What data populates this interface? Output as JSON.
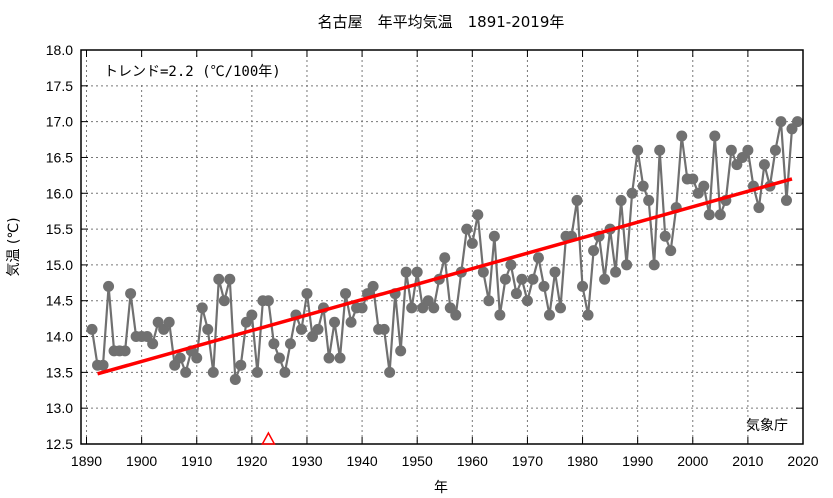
{
  "chart_data": {
    "type": "line",
    "title": "名古屋　年平均気温　1891-2019年",
    "xlabel": "年",
    "ylabel": "気温 (℃)",
    "xlim": [
      1889,
      2020
    ],
    "ylim": [
      12.5,
      18.0
    ],
    "grid": true,
    "x_ticks": [
      "1890",
      "1900",
      "1910",
      "1920",
      "1930",
      "1940",
      "1950",
      "1960",
      "1970",
      "1980",
      "1990",
      "2000",
      "2010",
      "2020"
    ],
    "y_ticks": [
      "12.5",
      "13.0",
      "13.5",
      "14.0",
      "14.5",
      "15.0",
      "15.5",
      "16.0",
      "16.5",
      "17.0",
      "17.5",
      "18.0"
    ],
    "annotation_trend": "トレンド=2.2 (℃/100年)",
    "source_label": "気象庁",
    "marker_color": "#707070",
    "trend_color": "#ff0000",
    "relocation_marker_year": 1923,
    "series": [
      {
        "name": "年平均気温",
        "x": [
          1891,
          1892,
          1893,
          1894,
          1895,
          1896,
          1897,
          1898,
          1899,
          1900,
          1901,
          1902,
          1903,
          1904,
          1905,
          1906,
          1907,
          1908,
          1909,
          1910,
          1911,
          1912,
          1913,
          1914,
          1915,
          1916,
          1917,
          1918,
          1919,
          1920,
          1921,
          1922,
          1923,
          1924,
          1925,
          1926,
          1927,
          1928,
          1929,
          1930,
          1931,
          1932,
          1933,
          1934,
          1935,
          1936,
          1937,
          1938,
          1939,
          1940,
          1941,
          1942,
          1943,
          1944,
          1945,
          1946,
          1947,
          1948,
          1949,
          1950,
          1951,
          1952,
          1953,
          1954,
          1955,
          1956,
          1957,
          1958,
          1959,
          1960,
          1961,
          1962,
          1963,
          1964,
          1965,
          1966,
          1967,
          1968,
          1969,
          1970,
          1971,
          1972,
          1973,
          1974,
          1975,
          1976,
          1977,
          1978,
          1979,
          1980,
          1981,
          1982,
          1983,
          1984,
          1985,
          1986,
          1987,
          1988,
          1989,
          1990,
          1991,
          1992,
          1993,
          1994,
          1995,
          1996,
          1997,
          1998,
          1999,
          2000,
          2001,
          2002,
          2003,
          2004,
          2005,
          2006,
          2007,
          2008,
          2009,
          2010,
          2011,
          2012,
          2013,
          2014,
          2015,
          2016,
          2017,
          2018,
          2019
        ],
        "values": [
          14.1,
          13.6,
          13.6,
          14.7,
          13.8,
          13.8,
          13.8,
          14.6,
          14.0,
          14.0,
          14.0,
          13.9,
          14.2,
          14.1,
          14.2,
          13.6,
          13.7,
          13.5,
          13.8,
          13.7,
          14.4,
          14.1,
          13.5,
          14.8,
          14.5,
          14.8,
          13.4,
          13.6,
          14.2,
          14.3,
          13.5,
          14.5,
          14.5,
          13.9,
          13.7,
          13.5,
          13.9,
          14.3,
          14.1,
          14.6,
          14.0,
          14.1,
          14.4,
          13.7,
          14.2,
          13.7,
          14.6,
          14.2,
          14.4,
          14.4,
          14.6,
          14.7,
          14.1,
          14.1,
          13.5,
          14.6,
          13.8,
          14.9,
          14.4,
          14.9,
          14.4,
          14.5,
          14.4,
          14.8,
          15.1,
          14.4,
          14.3,
          14.9,
          15.5,
          15.3,
          15.7,
          14.9,
          14.5,
          15.4,
          14.3,
          14.8,
          15.0,
          14.6,
          14.8,
          14.5,
          14.8,
          15.1,
          14.7,
          14.3,
          14.9,
          14.4,
          15.4,
          15.4,
          15.9,
          14.7,
          14.3,
          15.2,
          15.4,
          14.8,
          15.5,
          14.9,
          15.9,
          15.0,
          16.0,
          16.6,
          16.1,
          15.9,
          15.0,
          16.6,
          15.4,
          15.2,
          15.8,
          16.8,
          16.2,
          16.2,
          16.0,
          16.1,
          15.7,
          16.8,
          15.7,
          15.9,
          16.6,
          16.4,
          16.5,
          16.6,
          16.1,
          15.8,
          16.4,
          16.1,
          16.6,
          17.0,
          15.9,
          16.9,
          17.0
        ]
      },
      {
        "name": "トレンド",
        "x": [
          1892,
          2018
        ],
        "values": [
          13.48,
          16.2
        ]
      }
    ]
  }
}
